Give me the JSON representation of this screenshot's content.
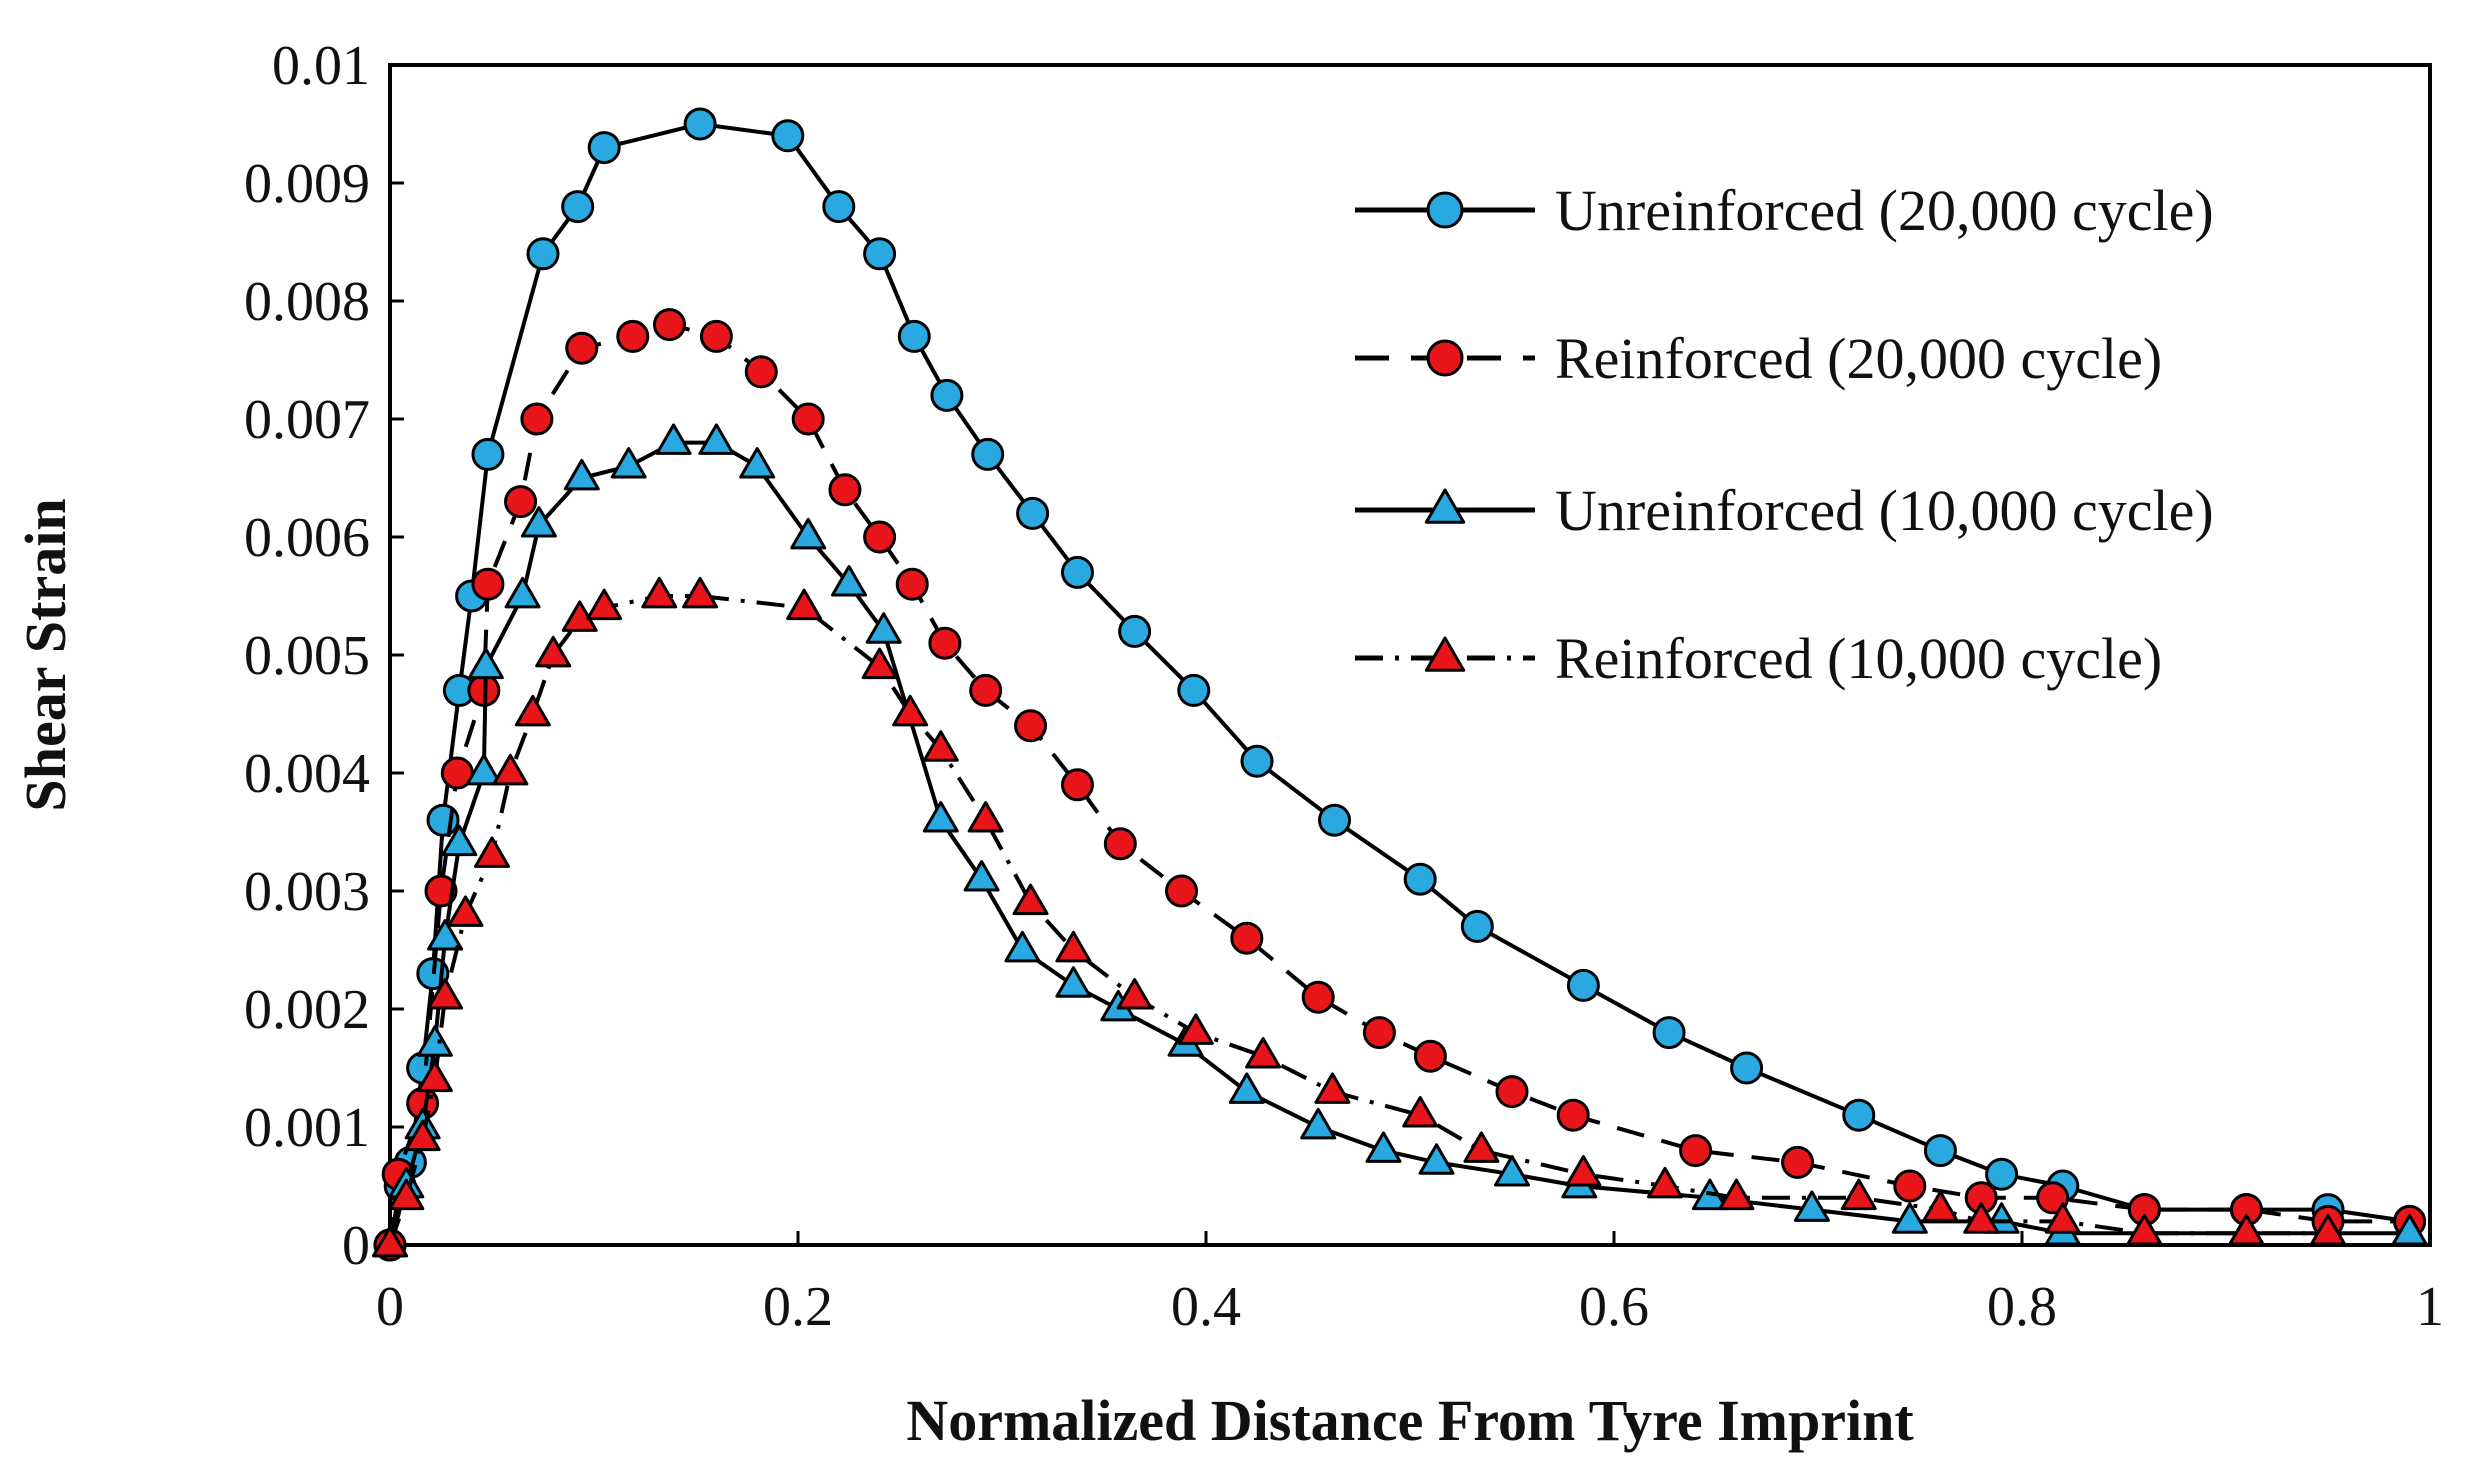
{
  "chart_data": {
    "type": "line",
    "title": "",
    "xlabel": "Normalized Distance From Tyre Imprint",
    "ylabel": "Shear Strain",
    "xlim": [
      0,
      1
    ],
    "ylim": [
      0,
      0.01
    ],
    "x_ticks": [
      0,
      0.2,
      0.4,
      0.6,
      0.8,
      1
    ],
    "x_tick_labels": [
      "0",
      "0.2",
      "0.4",
      "0.6",
      "0.8",
      "1"
    ],
    "y_ticks": [
      0,
      0.001,
      0.002,
      0.003,
      0.004,
      0.005,
      0.006,
      0.007,
      0.008,
      0.009,
      0.01
    ],
    "y_tick_labels": [
      "0",
      "0.001",
      "0.002",
      "0.003",
      "0.004",
      "0.005",
      "0.006",
      "0.007",
      "0.008",
      "0.009",
      "0.01"
    ],
    "grid": false,
    "legend_position": "top-right",
    "series": [
      {
        "name": "Unreinforced (20,000 cycle)",
        "line_style": "solid",
        "marker": "circle",
        "marker_color": "#29a9e0",
        "x": [
          0.0,
          0.005,
          0.01,
          0.016,
          0.021,
          0.026,
          0.034,
          0.04,
          0.048,
          0.075,
          0.092,
          0.105,
          0.152,
          0.195,
          0.22,
          0.24,
          0.257,
          0.273,
          0.293,
          0.315,
          0.337,
          0.365,
          0.394,
          0.425,
          0.463,
          0.505,
          0.533,
          0.585,
          0.627,
          0.665,
          0.72,
          0.76,
          0.79,
          0.82,
          0.86,
          0.91,
          0.95,
          0.99
        ],
        "y": [
          0.0,
          0.0005,
          0.0007,
          0.0015,
          0.0023,
          0.0036,
          0.0047,
          0.0055,
          0.0067,
          0.0084,
          0.0088,
          0.0093,
          0.0095,
          0.0094,
          0.0088,
          0.0084,
          0.0077,
          0.0072,
          0.0067,
          0.0062,
          0.0057,
          0.0052,
          0.0047,
          0.0041,
          0.0036,
          0.0031,
          0.0027,
          0.0022,
          0.0018,
          0.0015,
          0.0011,
          0.0008,
          0.0006,
          0.0005,
          0.0003,
          0.0003,
          0.0003,
          0.0002
        ]
      },
      {
        "name": "Reinforced (20,000 cycle)",
        "line_style": "dashed",
        "marker": "circle",
        "marker_color": "#e8161b",
        "x": [
          0.0,
          0.004,
          0.016,
          0.025,
          0.033,
          0.046,
          0.048,
          0.064,
          0.072,
          0.094,
          0.119,
          0.137,
          0.16,
          0.182,
          0.205,
          0.223,
          0.24,
          0.256,
          0.272,
          0.292,
          0.314,
          0.337,
          0.358,
          0.388,
          0.42,
          0.455,
          0.485,
          0.51,
          0.55,
          0.58,
          0.64,
          0.69,
          0.745,
          0.78,
          0.815,
          0.86,
          0.91,
          0.95,
          0.99
        ],
        "y": [
          0.0,
          0.0006,
          0.0012,
          0.003,
          0.004,
          0.0047,
          0.0056,
          0.0063,
          0.007,
          0.0076,
          0.0077,
          0.0078,
          0.0077,
          0.0074,
          0.007,
          0.0064,
          0.006,
          0.0056,
          0.0051,
          0.0047,
          0.0044,
          0.0039,
          0.0034,
          0.003,
          0.0026,
          0.0021,
          0.0018,
          0.0016,
          0.0013,
          0.0011,
          0.0008,
          0.0007,
          0.0005,
          0.0004,
          0.0004,
          0.0003,
          0.0003,
          0.0002,
          0.0002
        ]
      },
      {
        "name": "Unreinforced (10,000 cycle)",
        "line_style": "solid",
        "marker": "triangle",
        "marker_color": "#29a9e0",
        "x": [
          0.0,
          0.008,
          0.016,
          0.022,
          0.027,
          0.034,
          0.046,
          0.047,
          0.065,
          0.073,
          0.094,
          0.117,
          0.139,
          0.16,
          0.18,
          0.205,
          0.225,
          0.242,
          0.27,
          0.29,
          0.31,
          0.335,
          0.357,
          0.39,
          0.42,
          0.455,
          0.487,
          0.513,
          0.55,
          0.583,
          0.647,
          0.697,
          0.745,
          0.79,
          0.82,
          0.86,
          0.91,
          0.95,
          0.99
        ],
        "y": [
          0.0,
          0.0005,
          0.001,
          0.0017,
          0.0026,
          0.0034,
          0.004,
          0.0049,
          0.0055,
          0.0061,
          0.0065,
          0.0066,
          0.0068,
          0.0068,
          0.0066,
          0.006,
          0.0056,
          0.0052,
          0.0036,
          0.0031,
          0.0025,
          0.0022,
          0.002,
          0.0017,
          0.0013,
          0.001,
          0.0008,
          0.0007,
          0.0006,
          0.0005,
          0.0004,
          0.0003,
          0.0002,
          0.0002,
          0.0001,
          0.0001,
          0.0001,
          0.0001,
          0.0001
        ]
      },
      {
        "name": "Reinforced (10,000 cycle)",
        "line_style": "dash-dot",
        "marker": "triangle",
        "marker_color": "#e8161b",
        "x": [
          0.0,
          0.008,
          0.016,
          0.022,
          0.027,
          0.037,
          0.05,
          0.059,
          0.07,
          0.08,
          0.093,
          0.105,
          0.132,
          0.152,
          0.203,
          0.24,
          0.255,
          0.27,
          0.292,
          0.314,
          0.335,
          0.365,
          0.395,
          0.428,
          0.462,
          0.505,
          0.535,
          0.585,
          0.625,
          0.66,
          0.72,
          0.76,
          0.78,
          0.82,
          0.86,
          0.91,
          0.95
        ],
        "y": [
          0.0,
          0.0004,
          0.0009,
          0.0014,
          0.0021,
          0.0028,
          0.0033,
          0.004,
          0.0045,
          0.005,
          0.0053,
          0.0054,
          0.0055,
          0.0055,
          0.0054,
          0.0049,
          0.0045,
          0.0042,
          0.0036,
          0.0029,
          0.0025,
          0.0021,
          0.0018,
          0.0016,
          0.0013,
          0.0011,
          0.0008,
          0.0006,
          0.0005,
          0.0004,
          0.0004,
          0.0003,
          0.0002,
          0.0002,
          0.0001,
          0.0001,
          0.0001
        ]
      }
    ]
  }
}
